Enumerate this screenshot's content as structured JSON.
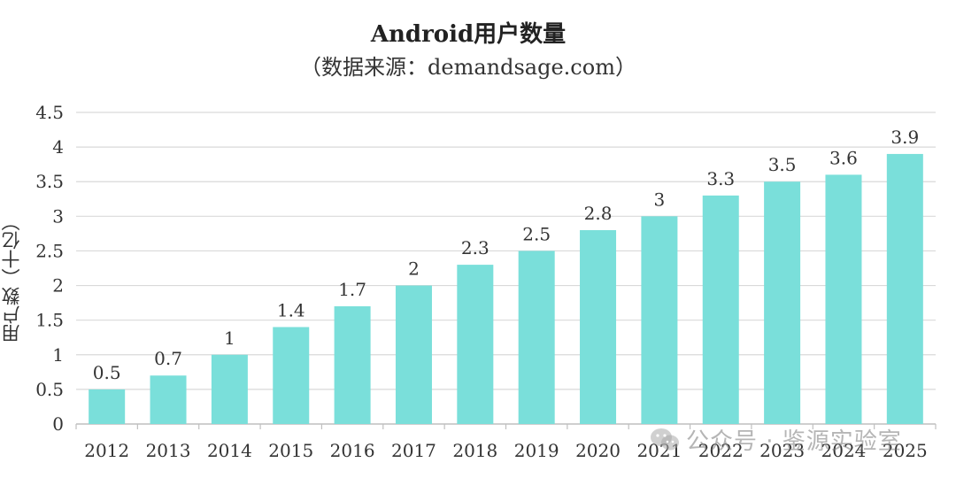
{
  "chart_data": {
    "type": "bar",
    "title": "Android用户数量",
    "subtitle": "（数据来源：demandsage.com）",
    "xlabel": "",
    "ylabel": "用户数（十亿）",
    "categories": [
      "2012",
      "2013",
      "2014",
      "2015",
      "2016",
      "2017",
      "2018",
      "2019",
      "2020",
      "2021",
      "2022",
      "2023",
      "2024",
      "2025"
    ],
    "values": [
      0.5,
      0.7,
      1,
      1.4,
      1.7,
      2,
      2.3,
      2.5,
      2.8,
      3,
      3.3,
      3.5,
      3.6,
      3.9
    ],
    "data_labels": [
      "0.5",
      "0.7",
      "1",
      "1.4",
      "1.7",
      "2",
      "2.3",
      "2.5",
      "2.8",
      "3",
      "3.3",
      "3.5",
      "3.6",
      "3.9"
    ],
    "ylim": [
      0,
      4.5
    ],
    "yticks": [
      "0",
      "0.5",
      "1",
      "1.5",
      "2",
      "2.5",
      "3",
      "3.5",
      "4",
      "4.5"
    ],
    "grid": true,
    "bar_color": "#7ADFDA",
    "grid_color": "#D9D9D9"
  },
  "watermark": {
    "icon": "wechat-icon",
    "text": "公众号 · 鉴源实验室"
  }
}
